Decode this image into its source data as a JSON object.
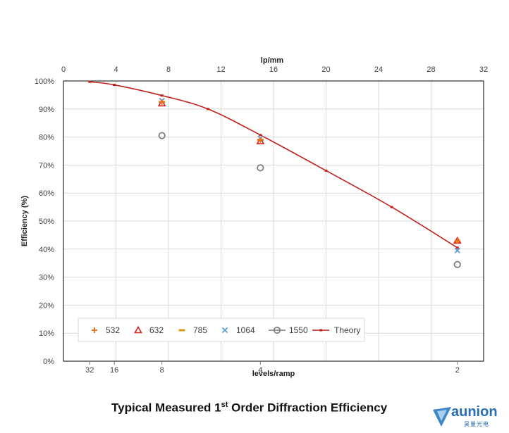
{
  "caption": {
    "main": "Typical Measured 1",
    "sup": "st",
    "rest": " Order Diffraction Efficiency"
  },
  "logo": {
    "text": "aunion",
    "subtext": "昊量光电"
  },
  "colors": {
    "532": "#e87722",
    "632": "#e0201b",
    "785": "#d69a16",
    "1064": "#5b9bd5",
    "1550": "#7f7f7f",
    "theory": "#c0201b"
  },
  "chart_data": {
    "type": "scatter",
    "title": "",
    "xlabel_top": "lp/mm",
    "xlabel_bottom": "levels/ramp",
    "ylabel": "Efficiency (%)",
    "x_top_ticks": [
      "0",
      "4",
      "8",
      "12",
      "16",
      "20",
      "24",
      "28",
      "32"
    ],
    "x_bottom_ticks": [
      {
        "label": "32",
        "x": 2
      },
      {
        "label": "16",
        "x": 3.875
      },
      {
        "label": "8",
        "x": 7.5
      },
      {
        "label": "4",
        "x": 15
      },
      {
        "label": "2",
        "x": 30
      }
    ],
    "y_ticks": [
      "0%",
      "10%",
      "20%",
      "30%",
      "40%",
      "50%",
      "60%",
      "70%",
      "80%",
      "90%",
      "100%"
    ],
    "xlim": [
      0,
      32
    ],
    "ylim": [
      0,
      100
    ],
    "grid": true,
    "legend_position": "bottom-left",
    "series": [
      {
        "name": "532",
        "marker": "plus",
        "points": [
          [
            7.5,
            92.5
          ],
          [
            15,
            79
          ],
          [
            30,
            43
          ]
        ]
      },
      {
        "name": "632",
        "marker": "triangle",
        "points": [
          [
            7.5,
            92
          ],
          [
            15,
            78.5
          ],
          [
            30,
            43
          ]
        ]
      },
      {
        "name": "785",
        "marker": "dash",
        "points": [
          [
            7.5,
            92.5
          ],
          [
            15,
            79
          ],
          [
            30,
            42.5
          ]
        ]
      },
      {
        "name": "1064",
        "marker": "x",
        "points": [
          [
            7.5,
            93
          ],
          [
            15,
            79.5
          ],
          [
            30,
            39.5
          ]
        ]
      },
      {
        "name": "1550",
        "marker": "circle",
        "points": [
          [
            7.5,
            80.5
          ],
          [
            15,
            69
          ],
          [
            30,
            34.5
          ]
        ]
      },
      {
        "name": "Theory",
        "marker": "line",
        "points": [
          [
            2,
            99.7
          ],
          [
            3.875,
            98.6
          ],
          [
            7.5,
            94.8
          ],
          [
            11,
            90
          ],
          [
            15,
            80.7
          ],
          [
            20,
            68
          ],
          [
            25,
            55
          ],
          [
            30,
            40.5
          ]
        ]
      }
    ]
  }
}
